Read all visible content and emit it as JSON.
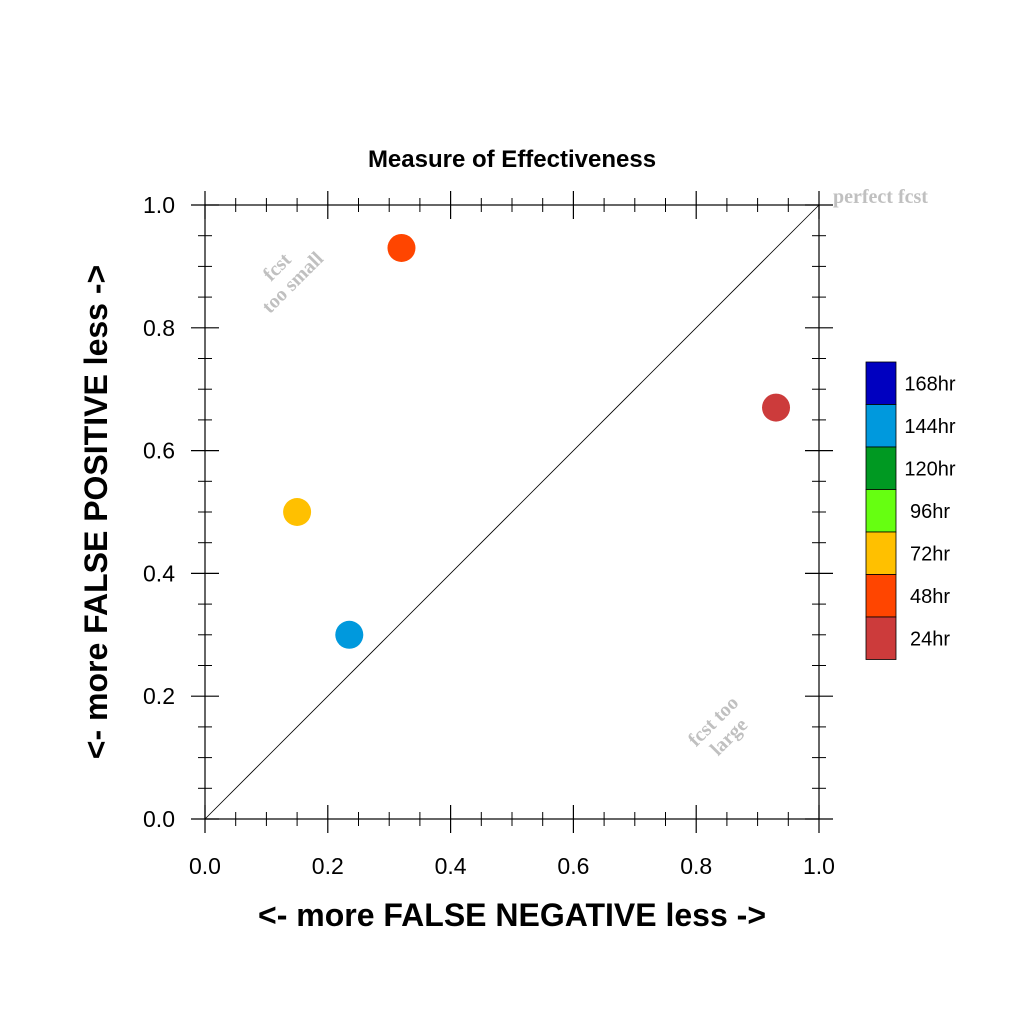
{
  "chart_data": {
    "type": "scatter",
    "title": "Measure of Effectiveness",
    "xlabel": "<- more   FALSE NEGATIVE   less ->",
    "ylabel": "<- more   FALSE POSITIVE   less ->",
    "xlim": [
      0,
      1
    ],
    "ylim": [
      0,
      1
    ],
    "xticks": [
      "0.0",
      "0.2",
      "0.4",
      "0.6",
      "0.8",
      "1.0"
    ],
    "yticks": [
      "0.0",
      "0.2",
      "0.4",
      "0.6",
      "0.8",
      "1.0"
    ],
    "grid": false,
    "reference_line": "diagonal",
    "annotations": {
      "perfect": "perfect fcst",
      "too_small_1": "fcst",
      "too_small_2": "too small",
      "too_large_1": "fcst too",
      "too_large_2": "large"
    },
    "legend": [
      {
        "label": "168hr",
        "color": "#0000c0"
      },
      {
        "label": "144hr",
        "color": "#0099dd"
      },
      {
        "label": "120hr",
        "color": "#009922"
      },
      {
        "label": "96hr",
        "color": "#66ff11"
      },
      {
        "label": "72hr",
        "color": "#ffc000"
      },
      {
        "label": "48hr",
        "color": "#ff4500"
      },
      {
        "label": "24hr",
        "color": "#cc3b3b"
      }
    ],
    "legend_position": "right",
    "points": [
      {
        "series": "24hr",
        "x": 0.93,
        "y": 0.67,
        "color": "#cc3b3b"
      },
      {
        "series": "48hr",
        "x": 0.32,
        "y": 0.93,
        "color": "#ff4500"
      },
      {
        "series": "72hr",
        "x": 0.15,
        "y": 0.5,
        "color": "#ffc000"
      },
      {
        "series": "144hr",
        "x": 0.235,
        "y": 0.3,
        "color": "#0099dd"
      }
    ]
  }
}
